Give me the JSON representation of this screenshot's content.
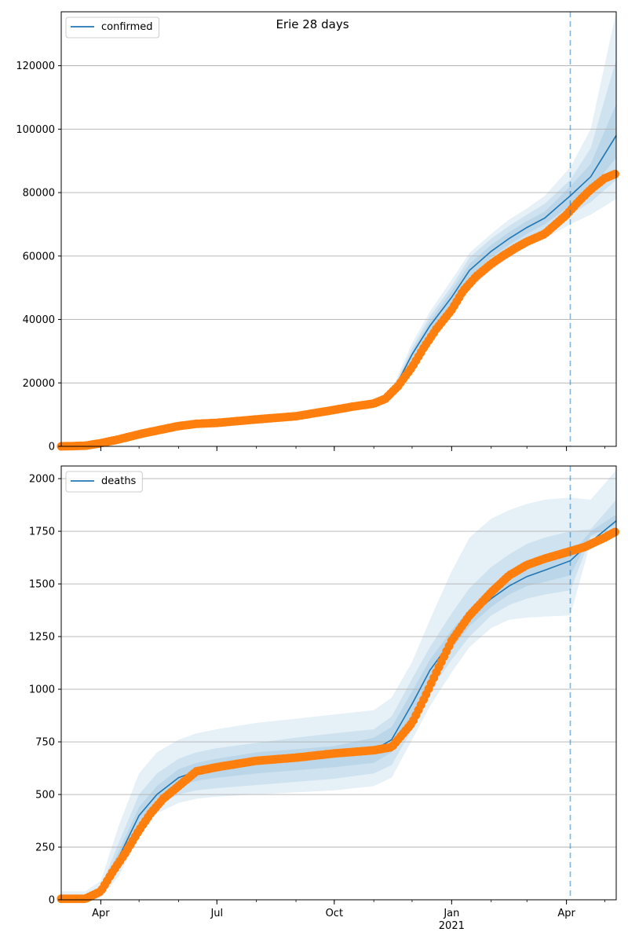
{
  "figure_title": "Erie 28 days",
  "x_tick_labels": [
    "Apr",
    "Jul",
    "Oct",
    "Jan",
    "Apr"
  ],
  "x_year_label": "2021",
  "colors": {
    "model": "#1f77b4",
    "observed": "#ff7f0e",
    "band": "#1f77b4",
    "grid": "#b0b0b0",
    "vline": "#1f77b4"
  },
  "chart_data": [
    {
      "type": "line",
      "panel": "top",
      "legend": "confirmed",
      "legend_position": "upper-left",
      "grid": "horizontal",
      "x_unit": "date",
      "xlim": [
        "2020-03-01",
        "2021-05-10"
      ],
      "ylim": [
        0,
        137000
      ],
      "yticks": [
        0,
        20000,
        40000,
        60000,
        80000,
        100000,
        120000
      ],
      "ytick_labels": [
        "0",
        "20000",
        "40000",
        "60000",
        "80000",
        "100000",
        "120000"
      ],
      "forecast_start": "2021-04-04",
      "model": {
        "name": "confirmed",
        "x": [
          "2020-03-01",
          "2020-04-01",
          "2020-05-01",
          "2020-06-01",
          "2020-07-01",
          "2020-08-01",
          "2020-09-01",
          "2020-10-01",
          "2020-11-01",
          "2020-11-15",
          "2020-12-01",
          "2020-12-15",
          "2021-01-01",
          "2021-01-15",
          "2021-02-01",
          "2021-02-15",
          "2021-03-01",
          "2021-03-15",
          "2021-04-04",
          "2021-04-20",
          "2021-05-10"
        ],
        "y": [
          0,
          1000,
          4500,
          7000,
          7800,
          8800,
          10000,
          11800,
          13500,
          16500,
          29000,
          38000,
          47000,
          55500,
          61500,
          65500,
          69000,
          72000,
          79000,
          85000,
          98000
        ],
        "bands": [
          {
            "lower": [
              0,
              700,
              3800,
              6200,
              7000,
              8000,
              9200,
              10900,
              12500,
              15200,
              26000,
              33500,
              41500,
              49500,
              55500,
              59500,
              63000,
              65500,
              70000,
              73000,
              78000
            ],
            "upper": [
              0,
              1300,
              5200,
              7800,
              8600,
              9600,
              10800,
              12700,
              14500,
              17800,
              32500,
              42500,
              52500,
              61000,
              67000,
              71500,
              75000,
              79000,
              88000,
              100000,
              137000
            ]
          },
          {
            "lower": [
              0,
              800,
              4000,
              6500,
              7300,
              8300,
              9500,
              11200,
              12900,
              15700,
              27000,
              35000,
              43500,
              51500,
              57500,
              61500,
              65000,
              68000,
              73000,
              77000,
              84000
            ],
            "upper": [
              0,
              1200,
              5000,
              7500,
              8300,
              9300,
              10500,
              12400,
              14100,
              17300,
              31000,
              41000,
              50500,
              59500,
              65500,
              69500,
              73000,
              76500,
              84000,
              94000,
              122000
            ]
          },
          {
            "lower": [
              0,
              900,
              4200,
              6700,
              7500,
              8500,
              9700,
              11500,
              13200,
              16100,
              28000,
              36500,
              45000,
              53500,
              59500,
              63500,
              67000,
              70000,
              76000,
              81000,
              91000
            ],
            "upper": [
              0,
              1100,
              4800,
              7300,
              8100,
              9100,
              10300,
              12100,
              13800,
              16900,
              30000,
              39500,
              49000,
              57500,
              63500,
              67500,
              71000,
              74000,
              82000,
              89000,
              108000
            ]
          }
        ]
      },
      "observed": {
        "name": "confirmed observed",
        "x": [
          "2020-03-01",
          "2020-03-20",
          "2020-04-01",
          "2020-04-15",
          "2020-05-01",
          "2020-05-15",
          "2020-06-01",
          "2020-06-15",
          "2020-07-01",
          "2020-08-01",
          "2020-09-01",
          "2020-10-01",
          "2020-10-15",
          "2020-11-01",
          "2020-11-10",
          "2020-11-20",
          "2020-12-01",
          "2020-12-10",
          "2020-12-20",
          "2021-01-01",
          "2021-01-10",
          "2021-01-20",
          "2021-02-01",
          "2021-02-10",
          "2021-02-20",
          "2021-03-01",
          "2021-03-15",
          "2021-04-01",
          "2021-04-10",
          "2021-04-20",
          "2021-05-01",
          "2021-05-10"
        ],
        "y": [
          0,
          200,
          1000,
          2200,
          3800,
          5000,
          6400,
          7100,
          7400,
          8500,
          9500,
          11500,
          12500,
          13500,
          15000,
          19000,
          25000,
          31000,
          37000,
          43000,
          49000,
          53500,
          57500,
          60000,
          62500,
          64500,
          67000,
          73000,
          77000,
          81000,
          84500,
          86000
        ]
      }
    },
    {
      "type": "line",
      "panel": "bottom",
      "legend": "deaths",
      "legend_position": "upper-left",
      "grid": "horizontal",
      "x_unit": "date",
      "xlim": [
        "2020-03-01",
        "2021-05-10"
      ],
      "ylim": [
        0,
        2060
      ],
      "yticks": [
        0,
        250,
        500,
        750,
        1000,
        1250,
        1500,
        1750,
        2000
      ],
      "ytick_labels": [
        "0",
        "250",
        "500",
        "750",
        "1000",
        "1250",
        "1500",
        "1750",
        "2000"
      ],
      "forecast_start": "2021-04-04",
      "model": {
        "name": "deaths",
        "x": [
          "2020-03-01",
          "2020-03-20",
          "2020-04-01",
          "2020-04-15",
          "2020-05-01",
          "2020-05-15",
          "2020-06-01",
          "2020-06-15",
          "2020-07-01",
          "2020-08-01",
          "2020-09-01",
          "2020-10-01",
          "2020-11-01",
          "2020-11-15",
          "2020-12-01",
          "2020-12-15",
          "2021-01-01",
          "2021-01-15",
          "2021-02-01",
          "2021-02-15",
          "2021-03-01",
          "2021-03-15",
          "2021-04-04",
          "2021-04-20",
          "2021-05-10"
        ],
        "y": [
          0,
          0,
          40,
          200,
          400,
          500,
          580,
          610,
          625,
          655,
          670,
          685,
          710,
          760,
          930,
          1090,
          1230,
          1340,
          1430,
          1490,
          1535,
          1565,
          1610,
          1700,
          1800
        ],
        "bands": [
          {
            "lower": [
              0,
              0,
              10,
              110,
              300,
              410,
              460,
              480,
              490,
              500,
              510,
              520,
              540,
              580,
              760,
              920,
              1080,
              1200,
              1290,
              1330,
              1340,
              1345,
              1350,
              1700,
              1730
            ],
            "upper": [
              40,
              40,
              90,
              350,
              600,
              700,
              760,
              790,
              810,
              840,
              860,
              880,
              900,
              960,
              1130,
              1330,
              1560,
              1720,
              1810,
              1850,
              1880,
              1900,
              1910,
              1900,
              2040
            ]
          },
          {
            "lower": [
              0,
              0,
              20,
              140,
              340,
              450,
              500,
              520,
              530,
              545,
              560,
              575,
              600,
              640,
              810,
              990,
              1140,
              1250,
              1350,
              1400,
              1430,
              1450,
              1470,
              1720,
              1760
            ],
            "upper": [
              20,
              20,
              60,
              270,
              500,
              600,
              670,
              700,
              720,
              745,
              770,
              790,
              810,
              870,
              1050,
              1200,
              1360,
              1480,
              1580,
              1640,
              1690,
              1720,
              1750,
              1760,
              1900
            ]
          },
          {
            "lower": [
              0,
              0,
              30,
              170,
              370,
              480,
              540,
              565,
              580,
              600,
              615,
              630,
              650,
              700,
              870,
              1040,
              1190,
              1300,
              1390,
              1450,
              1490,
              1510,
              1540,
              1730,
              1780
            ],
            "upper": [
              10,
              10,
              50,
              230,
              440,
              540,
              620,
              650,
              670,
              700,
              715,
              730,
              770,
              820,
              990,
              1140,
              1280,
              1380,
              1470,
              1530,
              1570,
              1600,
              1640,
              1750,
              1830
            ]
          }
        ]
      },
      "observed": {
        "name": "deaths observed",
        "x": [
          "2020-03-01",
          "2020-03-20",
          "2020-04-01",
          "2020-04-10",
          "2020-04-20",
          "2020-05-01",
          "2020-05-10",
          "2020-05-20",
          "2020-06-01",
          "2020-06-15",
          "2020-07-01",
          "2020-08-01",
          "2020-09-01",
          "2020-10-01",
          "2020-11-01",
          "2020-11-15",
          "2020-12-01",
          "2020-12-10",
          "2020-12-20",
          "2021-01-01",
          "2021-01-15",
          "2021-02-01",
          "2021-02-15",
          "2021-03-01",
          "2021-03-15",
          "2021-04-01",
          "2021-04-15",
          "2021-05-01",
          "2021-05-10"
        ],
        "y": [
          5,
          5,
          40,
          130,
          220,
          330,
          410,
          480,
          540,
          610,
          630,
          660,
          675,
          695,
          710,
          725,
          840,
          950,
          1080,
          1230,
          1350,
          1460,
          1540,
          1590,
          1620,
          1650,
          1675,
          1720,
          1750
        ]
      }
    }
  ]
}
